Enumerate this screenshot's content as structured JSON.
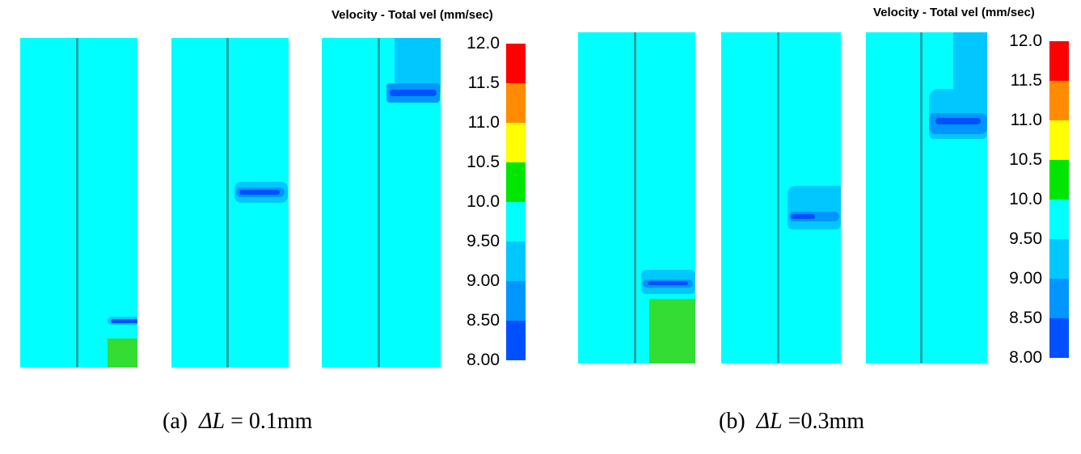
{
  "legend_title": "Velocity - Total vel (mm/sec)",
  "scale_ticks": [
    "12.0",
    "11.5",
    "11.0",
    "10.5",
    "10.0",
    "9.50",
    "9.00",
    "8.50",
    "8.00"
  ],
  "scale_colors": [
    "#ff0000",
    "#ff8c00",
    "#ffff00",
    "#00e600",
    "#00ffff",
    "#00c8ff",
    "#0096ff",
    "#0050ff",
    "#0000ff"
  ],
  "panels": {
    "a": {
      "label": "(a)",
      "symbol": "ΔL",
      "value": "= 0.1mm"
    },
    "b": {
      "label": "(b)",
      "symbol": "ΔL",
      "value": "=0.3mm"
    }
  }
}
